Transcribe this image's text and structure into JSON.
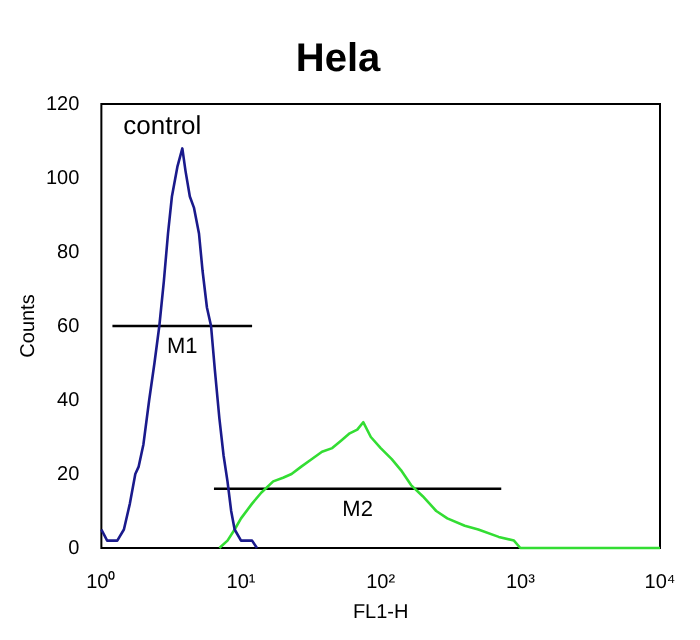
{
  "chart_data": {
    "type": "line",
    "title": "Hela",
    "xlabel": "FL1-H",
    "ylabel": "Counts",
    "log": "x",
    "grid": false,
    "legend": false,
    "marker": "none",
    "xlim": [
      1,
      10000
    ],
    "xticks": [
      {
        "value": 1,
        "label": "10⁰"
      },
      {
        "value": 10,
        "label": "10¹"
      },
      {
        "value": 100,
        "label": "10²"
      },
      {
        "value": 1000,
        "label": "10³"
      },
      {
        "value": 10000,
        "label": "10⁴"
      }
    ],
    "ylim": [
      0,
      120
    ],
    "yticks": [
      0,
      20,
      40,
      60,
      80,
      100,
      120
    ],
    "series": [
      {
        "name": "control",
        "color": "#1a1a8c",
        "x": [
          1.0,
          1.1,
          1.3,
          1.45,
          1.6,
          1.75,
          1.85,
          2.0,
          2.2,
          2.4,
          2.6,
          2.8,
          3.0,
          3.2,
          3.5,
          3.8,
          4.0,
          4.3,
          4.6,
          5.0,
          5.3,
          5.7,
          6.1,
          6.5,
          7.0,
          7.5,
          8.0,
          8.5,
          9.0,
          10,
          12,
          13
        ],
        "values": [
          5,
          2,
          2,
          5,
          12,
          20,
          22,
          28,
          40,
          50,
          60,
          72,
          85,
          95,
          103,
          108,
          102,
          95,
          92,
          85,
          75,
          65,
          60,
          48,
          35,
          25,
          18,
          10,
          5,
          2,
          2,
          0
        ]
      },
      {
        "color": "#33dd33",
        "x": [
          7,
          8,
          9,
          10,
          12,
          14,
          17,
          20,
          23,
          27,
          32,
          38,
          45,
          52,
          60,
          68,
          75,
          85,
          100,
          120,
          140,
          165,
          200,
          250,
          300,
          400,
          500,
          700,
          900,
          1000,
          10000
        ],
        "values": [
          0,
          2,
          5,
          8,
          12,
          15,
          18,
          19,
          20,
          22,
          24,
          26,
          27,
          29,
          31,
          32,
          34,
          30,
          27,
          24,
          21,
          17,
          14,
          10,
          8,
          6,
          5,
          3,
          2,
          0,
          0
        ]
      },
      {
        "name": "M1",
        "color": "#000000",
        "x": [
          1.2,
          12
        ],
        "values": [
          60,
          60
        ]
      },
      {
        "name": "M2",
        "color": "#000000",
        "x": [
          6.4,
          730
        ],
        "values": [
          16,
          16
        ]
      }
    ]
  }
}
